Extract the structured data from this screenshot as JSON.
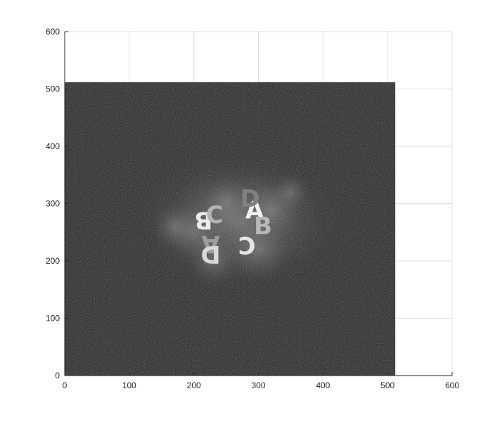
{
  "chart_data": {
    "type": "heatmap",
    "title": "",
    "xlabel": "",
    "ylabel": "",
    "xlim": [
      0,
      600
    ],
    "ylim": [
      0,
      600
    ],
    "x_ticks": [
      0,
      100,
      200,
      300,
      400,
      500,
      600
    ],
    "y_ticks": [
      0,
      100,
      200,
      300,
      400,
      500,
      600
    ],
    "x_tick_labels": [
      "0",
      "100",
      "200",
      "300",
      "400",
      "500",
      "600"
    ],
    "y_tick_labels": [
      "0",
      "100",
      "200",
      "300",
      "400",
      "500",
      "600"
    ],
    "grid": true,
    "image_extent": {
      "x": [
        0,
        512
      ],
      "y": [
        0,
        512
      ]
    },
    "colormap": "gray",
    "background_color": "#ffffff",
    "grid_color": "#e0e0e0",
    "axis_color": "#262626",
    "glyphs": [
      {
        "text": "A",
        "x": 294,
        "y": 288,
        "rotation": 0,
        "brightness": 0.95
      },
      {
        "text": "B",
        "x": 215,
        "y": 272,
        "rotation": 180,
        "brightness": 0.92
      },
      {
        "text": "B",
        "x": 307,
        "y": 260,
        "rotation": 0,
        "brightness": 0.72
      },
      {
        "text": "C",
        "x": 232,
        "y": 280,
        "rotation": 0,
        "brightness": 0.7
      },
      {
        "text": "C",
        "x": 282,
        "y": 228,
        "rotation": 180,
        "brightness": 0.9
      },
      {
        "text": "A",
        "x": 226,
        "y": 230,
        "rotation": 180,
        "brightness": 0.62
      },
      {
        "text": "D",
        "x": 226,
        "y": 212,
        "rotation": 180,
        "brightness": 0.85
      },
      {
        "text": "D",
        "x": 287,
        "y": 308,
        "rotation": 0,
        "brightness": 0.5
      }
    ]
  }
}
